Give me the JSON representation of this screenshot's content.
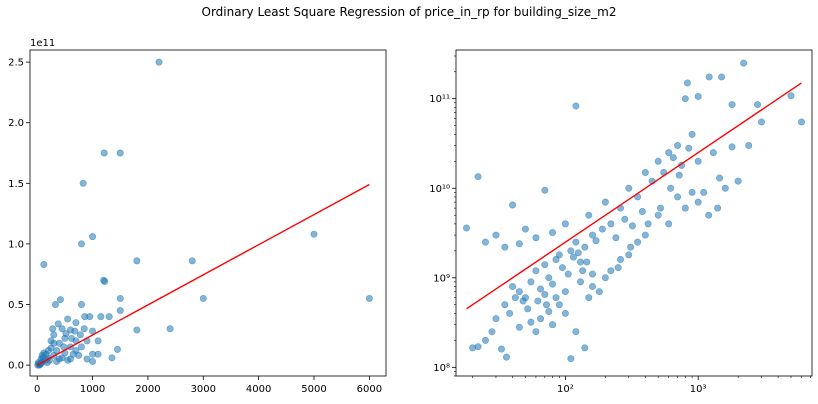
{
  "suptitle": "Ordinary Least Square Regression of price_in_rp for building_size_m2",
  "colors": {
    "points": "#1f77b4",
    "fit_line": "#ff0000",
    "axes": "#000000",
    "background": "#ffffff"
  },
  "chart_data": [
    {
      "type": "scatter",
      "scale": "linear",
      "x_label": "",
      "y_label": "",
      "xlim": [
        -130,
        6300
      ],
      "ylim": [
        -0.09,
        2.6
      ],
      "y_offset_label": "1e11",
      "x_ticks": [
        0,
        1000,
        2000,
        3000,
        4000,
        5000,
        6000
      ],
      "x_tick_labels": [
        "0",
        "1000",
        "2000",
        "3000",
        "4000",
        "5000",
        "6000"
      ],
      "y_ticks": [
        0.0,
        0.5,
        1.0,
        1.5,
        2.0,
        2.5
      ],
      "y_tick_labels": [
        "0.0",
        "0.5",
        "1.0",
        "1.5",
        "2.0",
        "2.5"
      ],
      "grid": false,
      "point_opacity": 0.55,
      "points": [
        [
          2200,
          2.5
        ],
        [
          1210,
          1.75
        ],
        [
          1500,
          1.75
        ],
        [
          830,
          1.5
        ],
        [
          1000,
          1.06
        ],
        [
          800,
          1.0
        ],
        [
          120,
          0.83
        ],
        [
          1800,
          0.86
        ],
        [
          2800,
          0.86
        ],
        [
          5000,
          1.08
        ],
        [
          1200,
          0.7
        ],
        [
          1220,
          0.69
        ],
        [
          6000,
          0.55
        ],
        [
          3000,
          0.55
        ],
        [
          1500,
          0.55
        ],
        [
          2400,
          0.3
        ],
        [
          1800,
          0.29
        ],
        [
          1450,
          0.13
        ],
        [
          1350,
          0.06
        ],
        [
          1100,
          0.09
        ],
        [
          1000,
          0.09
        ],
        [
          420,
          0.54
        ],
        [
          330,
          0.5
        ],
        [
          800,
          0.5
        ],
        [
          1300,
          0.4
        ],
        [
          1500,
          0.45
        ],
        [
          950,
          0.4
        ],
        [
          700,
          0.35
        ],
        [
          550,
          0.38
        ],
        [
          600,
          0.29
        ],
        [
          450,
          0.3
        ],
        [
          850,
          0.3
        ],
        [
          1000,
          0.28
        ],
        [
          700,
          0.2
        ],
        [
          500,
          0.22
        ],
        [
          300,
          0.25
        ],
        [
          400,
          0.18
        ],
        [
          600,
          0.15
        ],
        [
          250,
          0.14
        ],
        [
          350,
          0.12
        ],
        [
          500,
          0.1
        ],
        [
          700,
          0.12
        ],
        [
          800,
          0.15
        ],
        [
          900,
          0.2
        ],
        [
          900,
          0.05
        ],
        [
          1000,
          0.03
        ],
        [
          1100,
          0.2
        ],
        [
          300,
          0.08
        ],
        [
          200,
          0.06
        ],
        [
          150,
          0.04
        ],
        [
          100,
          0.03
        ],
        [
          80,
          0.02
        ],
        [
          60,
          0.01
        ],
        [
          50,
          0.005
        ],
        [
          40,
          0.0
        ],
        [
          30,
          0.01
        ],
        [
          120,
          0.1
        ],
        [
          200,
          0.12
        ],
        [
          250,
          0.2
        ],
        [
          400,
          0.05
        ],
        [
          600,
          0.05
        ],
        [
          750,
          0.08
        ],
        [
          180,
          0.02
        ],
        [
          220,
          0.04
        ],
        [
          350,
          0.03
        ],
        [
          450,
          0.06
        ],
        [
          550,
          0.04
        ],
        [
          650,
          0.09
        ],
        [
          100,
          0.06
        ],
        [
          70,
          0.05
        ],
        [
          20,
          0.02
        ],
        [
          10,
          0.0
        ],
        [
          300,
          0.18
        ],
        [
          480,
          0.15
        ],
        [
          520,
          0.26
        ],
        [
          620,
          0.22
        ],
        [
          680,
          0.28
        ],
        [
          780,
          0.25
        ],
        [
          860,
          0.4
        ],
        [
          1150,
          0.4
        ],
        [
          380,
          0.34
        ],
        [
          280,
          0.3
        ],
        [
          160,
          0.09
        ],
        [
          90,
          0.08
        ]
      ],
      "fit_line": {
        "x": [
          0,
          6000
        ],
        "y": [
          0.0,
          1.49
        ]
      }
    },
    {
      "type": "scatter",
      "scale": "log",
      "x_label": "",
      "y_label": "",
      "xlim": [
        15,
        7200
      ],
      "ylim": [
        80000000.0,
        350000000000.0
      ],
      "x_ticks": [
        100,
        1000
      ],
      "x_tick_labels": [
        "10²",
        "10³"
      ],
      "y_ticks": [
        100000000.0,
        1000000000.0,
        10000000000.0,
        100000000000.0
      ],
      "y_tick_labels": [
        "10⁸",
        "10⁹",
        "10¹⁰",
        "10¹¹"
      ],
      "grid": false,
      "point_opacity": 0.55,
      "points": [
        [
          2200,
          250000000000.0
        ],
        [
          1210,
          175000000000.0
        ],
        [
          1500,
          175000000000.0
        ],
        [
          830,
          150000000000.0
        ],
        [
          1000,
          106000000000.0
        ],
        [
          800,
          100000000000.0
        ],
        [
          120,
          83000000000.0
        ],
        [
          1800,
          86000000000.0
        ],
        [
          2800,
          86000000000.0
        ],
        [
          5000,
          108000000000.0
        ],
        [
          6000,
          55000000000.0
        ],
        [
          3000,
          55000000000.0
        ],
        [
          2400,
          30000000000.0
        ],
        [
          1800,
          29000000000.0
        ],
        [
          1450,
          13000000000.0
        ],
        [
          1100,
          9000000000.0
        ],
        [
          22,
          13500000000.0
        ],
        [
          18,
          3600000000.0
        ],
        [
          40,
          6500000000.0
        ],
        [
          70,
          9500000000.0
        ],
        [
          25,
          2500000000.0
        ],
        [
          30,
          3000000000.0
        ],
        [
          35,
          2200000000.0
        ],
        [
          45,
          2400000000.0
        ],
        [
          50,
          3500000000.0
        ],
        [
          60,
          2800000000.0
        ],
        [
          80,
          3200000000.0
        ],
        [
          100,
          4000000000.0
        ],
        [
          150,
          5000000000.0
        ],
        [
          200,
          7000000000.0
        ],
        [
          300,
          10000000000.0
        ],
        [
          400,
          15000000000.0
        ],
        [
          500,
          20000000000.0
        ],
        [
          600,
          25000000000.0
        ],
        [
          700,
          30000000000.0
        ],
        [
          900,
          40000000000.0
        ],
        [
          1000,
          20000000000.0
        ],
        [
          1300,
          25000000000.0
        ],
        [
          1600,
          10000000000.0
        ],
        [
          2000,
          12000000000.0
        ],
        [
          120,
          2500000000.0
        ],
        [
          160,
          3000000000.0
        ],
        [
          220,
          4000000000.0
        ],
        [
          260,
          6000000000.0
        ],
        [
          350,
          8000000000.0
        ],
        [
          450,
          12000000000.0
        ],
        [
          550,
          15000000000.0
        ],
        [
          650,
          22000000000.0
        ],
        [
          750,
          18000000000.0
        ],
        [
          850,
          28000000000.0
        ],
        [
          90,
          1800000000.0
        ],
        [
          110,
          2000000000.0
        ],
        [
          130,
          1500000000.0
        ],
        [
          140,
          2200000000.0
        ],
        [
          170,
          2600000000.0
        ],
        [
          190,
          3500000000.0
        ],
        [
          240,
          2800000000.0
        ],
        [
          280,
          4500000000.0
        ],
        [
          320,
          3800000000.0
        ],
        [
          380,
          5500000000.0
        ],
        [
          60,
          1200000000.0
        ],
        [
          70,
          1400000000.0
        ],
        [
          75,
          1000000000.0
        ],
        [
          85,
          1600000000.0
        ],
        [
          95,
          1300000000.0
        ],
        [
          105,
          1100000000.0
        ],
        [
          115,
          1700000000.0
        ],
        [
          125,
          1900000000.0
        ],
        [
          135,
          1200000000.0
        ],
        [
          145,
          1500000000.0
        ],
        [
          40,
          800000000.0
        ],
        [
          45,
          700000000.0
        ],
        [
          50,
          600000000.0
        ],
        [
          55,
          900000000.0
        ],
        [
          65,
          750000000.0
        ],
        [
          70,
          650000000.0
        ],
        [
          80,
          850000000.0
        ],
        [
          35,
          500000000.0
        ],
        [
          38,
          400000000.0
        ],
        [
          42,
          600000000.0
        ],
        [
          48,
          550000000.0
        ],
        [
          52,
          450000000.0
        ],
        [
          30,
          350000000.0
        ],
        [
          28,
          250000000.0
        ],
        [
          25,
          200000000.0
        ],
        [
          22,
          170000000.0
        ],
        [
          20,
          165000000.0
        ],
        [
          33,
          160000000.0
        ],
        [
          36,
          130000000.0
        ],
        [
          60,
          250000000.0
        ],
        [
          80,
          300000000.0
        ],
        [
          100,
          400000000.0
        ],
        [
          120,
          250000000.0
        ],
        [
          150,
          600000000.0
        ],
        [
          110,
          125000000.0
        ],
        [
          140,
          165000000.0
        ],
        [
          200,
          1000000000.0
        ],
        [
          250,
          1300000000.0
        ],
        [
          300,
          1800000000.0
        ],
        [
          350,
          2500000000.0
        ],
        [
          400,
          3000000000.0
        ],
        [
          500,
          5000000000.0
        ],
        [
          600,
          4000000000.0
        ],
        [
          700,
          8000000000.0
        ],
        [
          800,
          6000000000.0
        ],
        [
          900,
          9000000000.0
        ],
        [
          1000,
          7000000000.0
        ],
        [
          1200,
          5000000000.0
        ],
        [
          1400,
          6000000000.0
        ],
        [
          160,
          800000000.0
        ],
        [
          180,
          700000000.0
        ],
        [
          220,
          1200000000.0
        ],
        [
          90,
          500000000.0
        ],
        [
          75,
          420000000.0
        ],
        [
          65,
          350000000.0
        ],
        [
          55,
          320000000.0
        ],
        [
          45,
          280000000.0
        ],
        [
          260,
          1600000000.0
        ],
        [
          310,
          2200000000.0
        ],
        [
          420,
          4000000000.0
        ],
        [
          520,
          6000000000.0
        ],
        [
          620,
          10000000000.0
        ],
        [
          720,
          14000000000.0
        ],
        [
          160,
          1100000000.0
        ],
        [
          130,
          900000000.0
        ],
        [
          100,
          700000000.0
        ],
        [
          85,
          600000000.0
        ],
        [
          72,
          500000000.0
        ],
        [
          62,
          550000000.0
        ]
      ],
      "fit_line": {
        "x": [
          18,
          6000
        ],
        "y": [
          450000000.0,
          150000000000.0
        ]
      }
    }
  ]
}
